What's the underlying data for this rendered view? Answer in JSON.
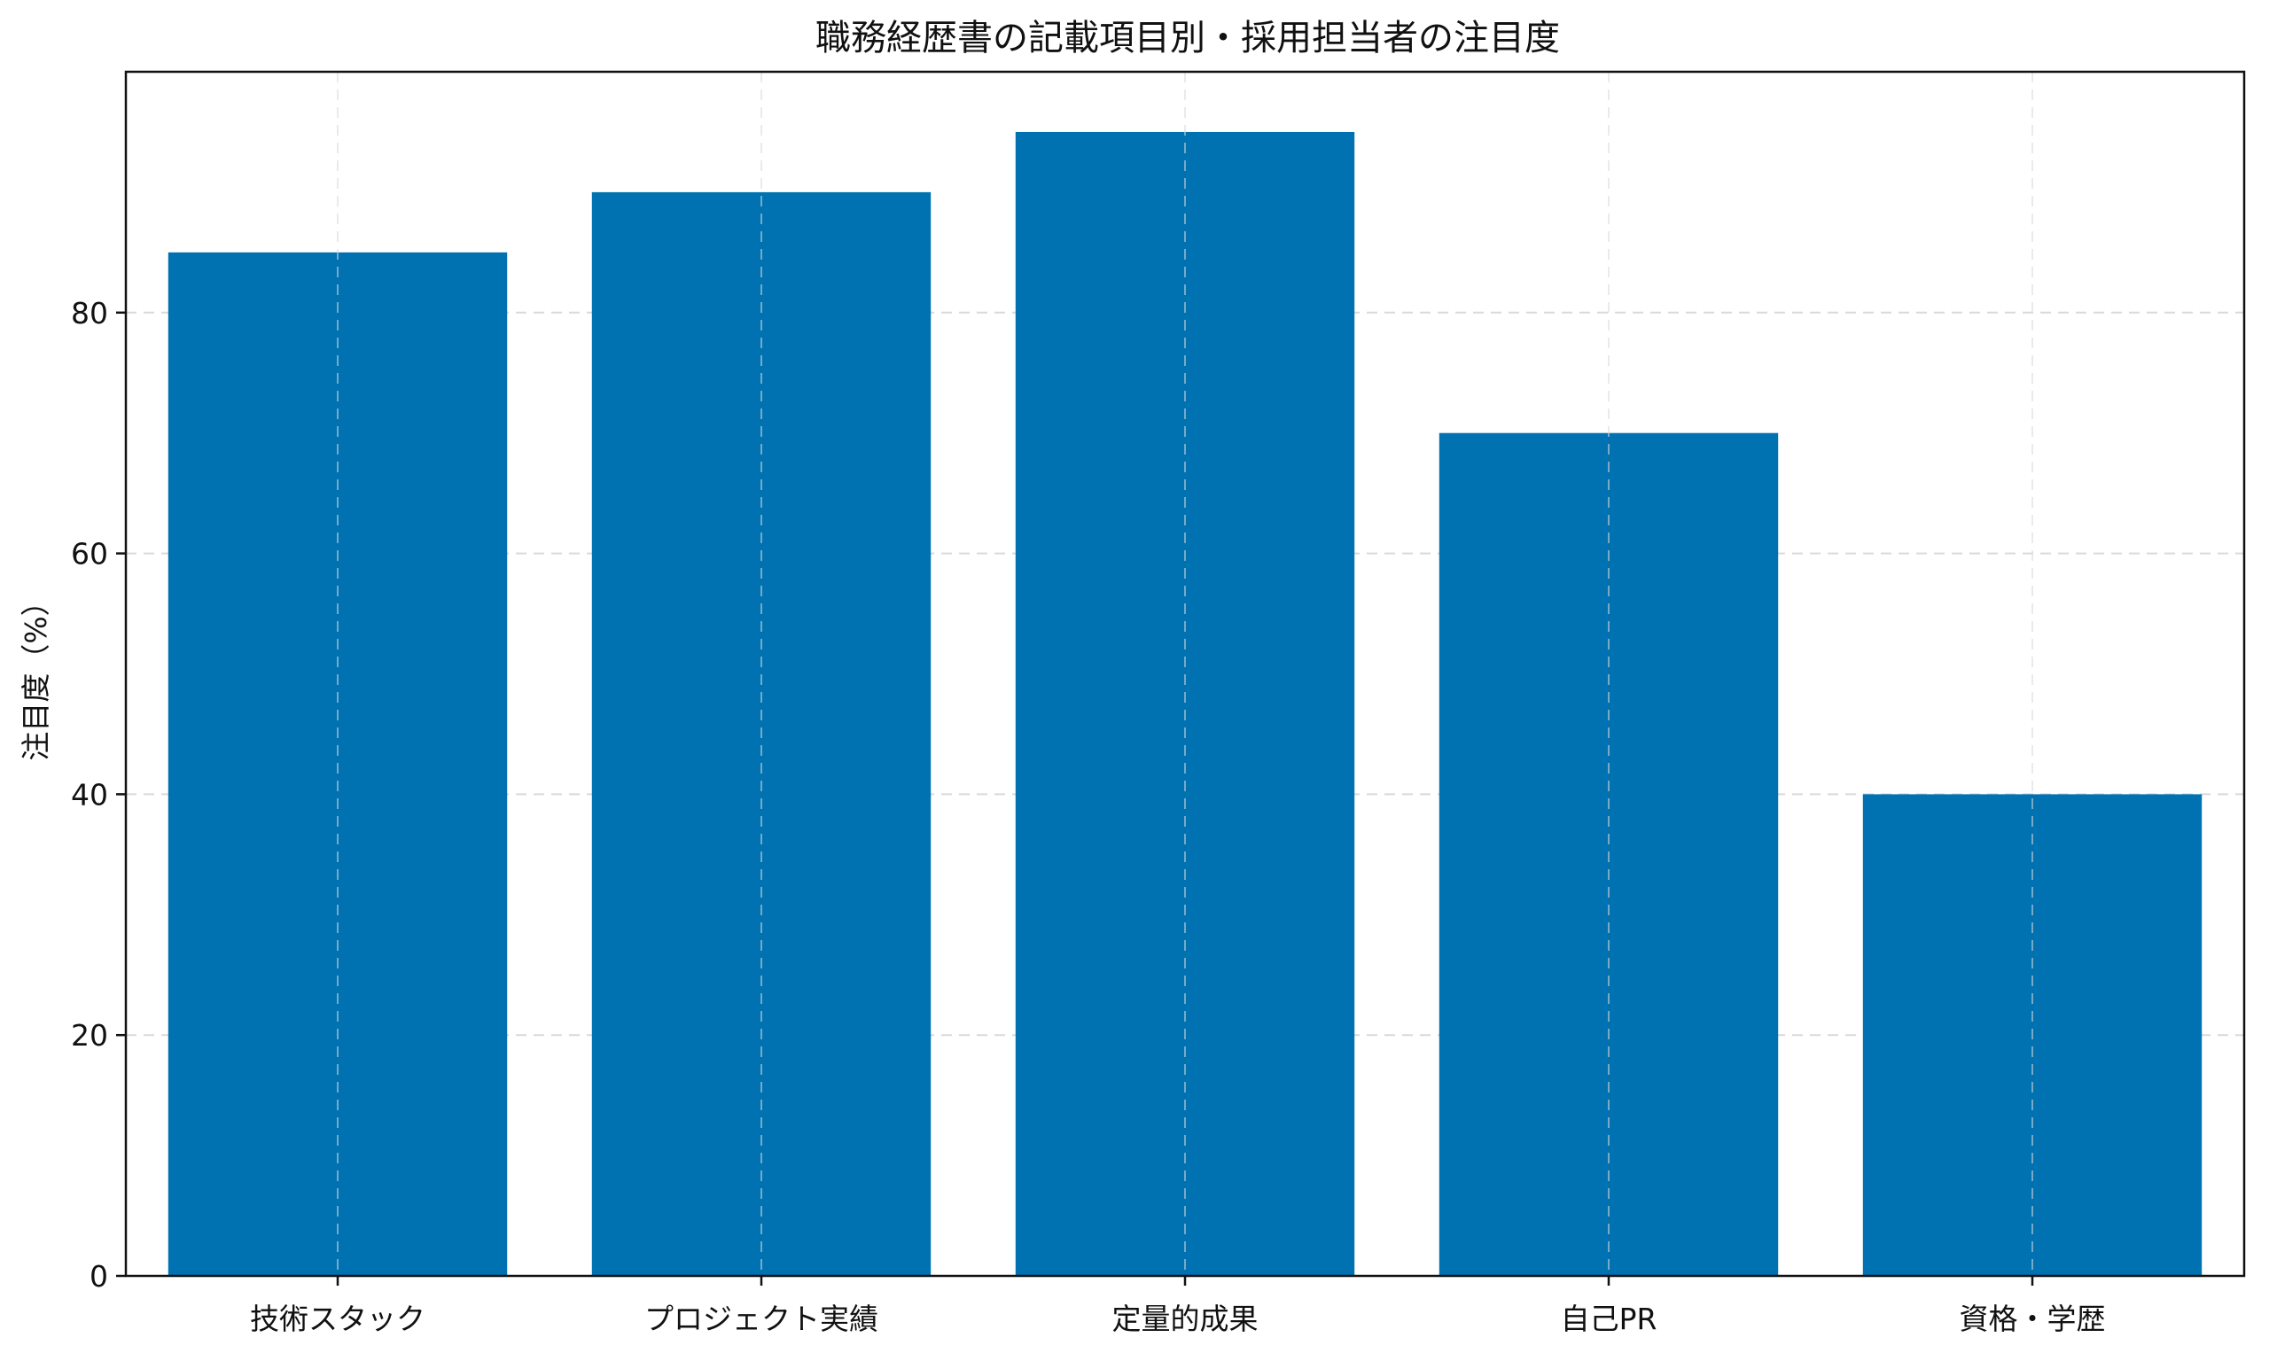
{
  "chart_data": {
    "type": "bar",
    "title": "職務経歴書の記載項目別・採用担当者の注目度",
    "xlabel": "",
    "ylabel": "注目度（%）",
    "categories": [
      "技術スタック",
      "プロジェクト実績",
      "定量的成果",
      "自己PR",
      "資格・学歴"
    ],
    "values": [
      85,
      90,
      95,
      70,
      40
    ],
    "ylim": [
      0,
      100
    ],
    "yticks": [
      0,
      20,
      40,
      60,
      80
    ],
    "grid": true,
    "bar_color": "#0072b2"
  }
}
